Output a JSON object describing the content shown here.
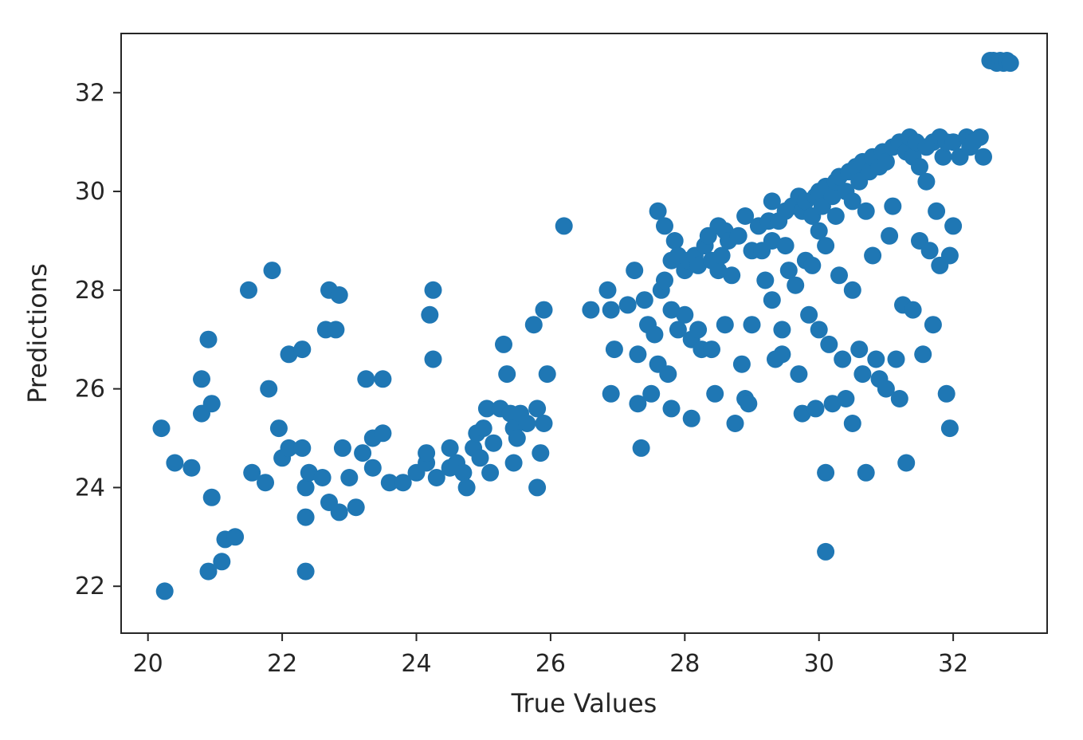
{
  "chart_data": {
    "type": "scatter",
    "title": "",
    "xlabel": "True Values",
    "ylabel": "Predictions",
    "xlim": [
      19.6,
      33.4
    ],
    "ylim": [
      21.05,
      33.2
    ],
    "xticks": [
      20,
      22,
      24,
      26,
      28,
      30,
      32
    ],
    "yticks": [
      22,
      24,
      26,
      28,
      30,
      32
    ],
    "grid": false,
    "legend": "none",
    "marker_color": "#1f77b4",
    "series": [
      {
        "points": [
          [
            20.2,
            25.2
          ],
          [
            20.25,
            21.9
          ],
          [
            20.4,
            24.5
          ],
          [
            20.65,
            24.4
          ],
          [
            20.8,
            26.2
          ],
          [
            20.8,
            25.5
          ],
          [
            20.9,
            27.0
          ],
          [
            20.95,
            25.7
          ],
          [
            20.95,
            23.8
          ],
          [
            20.9,
            22.3
          ],
          [
            21.1,
            22.5
          ],
          [
            21.15,
            22.95
          ],
          [
            21.3,
            23.0
          ],
          [
            21.5,
            28.0
          ],
          [
            21.55,
            24.3
          ],
          [
            21.85,
            28.4
          ],
          [
            21.8,
            26.0
          ],
          [
            21.75,
            24.1
          ],
          [
            21.95,
            25.2
          ],
          [
            22.0,
            24.6
          ],
          [
            22.1,
            24.8
          ],
          [
            22.1,
            26.7
          ],
          [
            22.3,
            26.8
          ],
          [
            22.3,
            24.8
          ],
          [
            22.35,
            24.0
          ],
          [
            22.35,
            23.4
          ],
          [
            22.35,
            22.3
          ],
          [
            22.4,
            24.3
          ],
          [
            22.6,
            24.2
          ],
          [
            22.65,
            27.2
          ],
          [
            22.7,
            28.0
          ],
          [
            22.8,
            27.2
          ],
          [
            22.85,
            27.9
          ],
          [
            22.7,
            23.7
          ],
          [
            22.85,
            23.5
          ],
          [
            22.9,
            24.8
          ],
          [
            23.0,
            24.2
          ],
          [
            23.1,
            23.6
          ],
          [
            23.2,
            24.7
          ],
          [
            23.25,
            26.2
          ],
          [
            23.35,
            24.4
          ],
          [
            23.35,
            25.0
          ],
          [
            23.5,
            26.2
          ],
          [
            23.5,
            25.1
          ],
          [
            23.6,
            24.1
          ],
          [
            23.8,
            24.1
          ],
          [
            24.0,
            24.3
          ],
          [
            24.15,
            24.5
          ],
          [
            24.15,
            24.7
          ],
          [
            24.2,
            27.5
          ],
          [
            24.25,
            28.0
          ],
          [
            24.25,
            26.6
          ],
          [
            24.3,
            24.2
          ],
          [
            24.5,
            24.8
          ],
          [
            24.5,
            24.4
          ],
          [
            24.6,
            24.5
          ],
          [
            24.7,
            24.3
          ],
          [
            24.75,
            24.0
          ],
          [
            24.85,
            24.8
          ],
          [
            24.9,
            25.1
          ],
          [
            24.95,
            24.6
          ],
          [
            25.0,
            25.2
          ],
          [
            25.05,
            25.6
          ],
          [
            25.1,
            24.3
          ],
          [
            25.15,
            24.9
          ],
          [
            25.25,
            25.6
          ],
          [
            25.3,
            26.9
          ],
          [
            25.35,
            26.3
          ],
          [
            25.4,
            25.5
          ],
          [
            25.45,
            25.2
          ],
          [
            25.45,
            24.5
          ],
          [
            25.5,
            25.0
          ],
          [
            25.55,
            25.5
          ],
          [
            25.65,
            25.3
          ],
          [
            25.75,
            27.3
          ],
          [
            25.8,
            24.0
          ],
          [
            25.8,
            25.6
          ],
          [
            25.85,
            24.7
          ],
          [
            25.9,
            27.6
          ],
          [
            25.9,
            25.3
          ],
          [
            25.95,
            26.3
          ],
          [
            26.2,
            29.3
          ],
          [
            26.6,
            27.6
          ],
          [
            26.85,
            28.0
          ],
          [
            26.9,
            27.6
          ],
          [
            26.95,
            26.8
          ],
          [
            26.9,
            25.9
          ],
          [
            27.15,
            27.7
          ],
          [
            27.25,
            28.4
          ],
          [
            27.3,
            26.7
          ],
          [
            27.3,
            25.7
          ],
          [
            27.35,
            24.8
          ],
          [
            27.4,
            27.8
          ],
          [
            27.45,
            27.3
          ],
          [
            27.5,
            25.9
          ],
          [
            27.55,
            27.1
          ],
          [
            27.6,
            29.6
          ],
          [
            27.6,
            26.5
          ],
          [
            27.65,
            28.0
          ],
          [
            27.7,
            29.3
          ],
          [
            27.7,
            28.2
          ],
          [
            27.75,
            26.3
          ],
          [
            27.8,
            28.6
          ],
          [
            27.8,
            27.6
          ],
          [
            27.8,
            25.6
          ],
          [
            27.85,
            29.0
          ],
          [
            27.9,
            28.7
          ],
          [
            27.9,
            27.2
          ],
          [
            28.0,
            28.4
          ],
          [
            28.0,
            27.5
          ],
          [
            28.05,
            28.6
          ],
          [
            28.1,
            27.0
          ],
          [
            28.1,
            25.4
          ],
          [
            28.15,
            28.7
          ],
          [
            28.2,
            28.5
          ],
          [
            28.2,
            27.2
          ],
          [
            28.25,
            26.8
          ],
          [
            28.3,
            28.9
          ],
          [
            28.35,
            29.1
          ],
          [
            28.4,
            28.6
          ],
          [
            28.4,
            26.8
          ],
          [
            28.45,
            25.9
          ],
          [
            28.5,
            29.3
          ],
          [
            28.5,
            28.4
          ],
          [
            28.55,
            28.7
          ],
          [
            28.6,
            29.2
          ],
          [
            28.6,
            27.3
          ],
          [
            28.65,
            29.0
          ],
          [
            28.7,
            28.3
          ],
          [
            28.75,
            25.3
          ],
          [
            28.8,
            29.1
          ],
          [
            28.85,
            26.5
          ],
          [
            28.9,
            29.5
          ],
          [
            28.9,
            25.8
          ],
          [
            28.95,
            25.7
          ],
          [
            29.0,
            28.8
          ],
          [
            29.0,
            27.3
          ],
          [
            29.1,
            29.3
          ],
          [
            29.15,
            28.8
          ],
          [
            29.2,
            28.2
          ],
          [
            29.25,
            29.4
          ],
          [
            29.3,
            29.8
          ],
          [
            29.3,
            29.0
          ],
          [
            29.3,
            27.8
          ],
          [
            29.35,
            26.6
          ],
          [
            29.4,
            29.4
          ],
          [
            29.45,
            27.2
          ],
          [
            29.45,
            26.7
          ],
          [
            29.5,
            29.6
          ],
          [
            29.5,
            28.9
          ],
          [
            29.55,
            28.4
          ],
          [
            29.6,
            29.7
          ],
          [
            29.65,
            28.1
          ],
          [
            29.7,
            29.9
          ],
          [
            29.7,
            26.3
          ],
          [
            29.75,
            29.6
          ],
          [
            29.75,
            25.5
          ],
          [
            29.8,
            29.8
          ],
          [
            29.8,
            28.6
          ],
          [
            29.85,
            27.5
          ],
          [
            29.9,
            29.5
          ],
          [
            29.9,
            28.5
          ],
          [
            29.95,
            29.9
          ],
          [
            29.95,
            25.6
          ],
          [
            30.0,
            30.0
          ],
          [
            30.0,
            29.2
          ],
          [
            30.0,
            27.2
          ],
          [
            30.05,
            29.7
          ],
          [
            30.1,
            30.1
          ],
          [
            30.1,
            28.9
          ],
          [
            30.1,
            24.3
          ],
          [
            30.1,
            22.7
          ],
          [
            30.15,
            26.9
          ],
          [
            30.2,
            29.9
          ],
          [
            30.2,
            25.7
          ],
          [
            30.25,
            30.2
          ],
          [
            30.25,
            29.5
          ],
          [
            30.3,
            30.3
          ],
          [
            30.3,
            28.3
          ],
          [
            30.35,
            26.6
          ],
          [
            30.4,
            30.0
          ],
          [
            30.4,
            25.8
          ],
          [
            30.45,
            30.4
          ],
          [
            30.5,
            29.8
          ],
          [
            30.5,
            28.0
          ],
          [
            30.5,
            25.3
          ],
          [
            30.55,
            30.5
          ],
          [
            30.6,
            30.2
          ],
          [
            30.6,
            26.8
          ],
          [
            30.65,
            30.6
          ],
          [
            30.65,
            26.3
          ],
          [
            30.7,
            29.6
          ],
          [
            30.7,
            24.3
          ],
          [
            30.75,
            30.4
          ],
          [
            30.8,
            30.7
          ],
          [
            30.8,
            28.7
          ],
          [
            30.85,
            26.6
          ],
          [
            30.9,
            30.5
          ],
          [
            30.9,
            26.2
          ],
          [
            30.95,
            30.8
          ],
          [
            31.0,
            30.6
          ],
          [
            31.0,
            26.0
          ],
          [
            31.05,
            29.1
          ],
          [
            31.1,
            30.9
          ],
          [
            31.1,
            29.7
          ],
          [
            31.15,
            26.6
          ],
          [
            31.2,
            31.0
          ],
          [
            31.2,
            25.8
          ],
          [
            31.25,
            27.7
          ],
          [
            31.3,
            30.8
          ],
          [
            31.3,
            24.5
          ],
          [
            31.35,
            31.1
          ],
          [
            31.4,
            30.7
          ],
          [
            31.4,
            27.6
          ],
          [
            31.45,
            31.0
          ],
          [
            31.5,
            30.5
          ],
          [
            31.5,
            29.0
          ],
          [
            31.55,
            26.7
          ],
          [
            31.6,
            30.9
          ],
          [
            31.6,
            30.2
          ],
          [
            31.65,
            28.8
          ],
          [
            31.7,
            31.0
          ],
          [
            31.7,
            27.3
          ],
          [
            31.75,
            29.6
          ],
          [
            31.8,
            31.1
          ],
          [
            31.8,
            28.5
          ],
          [
            31.85,
            30.7
          ],
          [
            31.9,
            31.0
          ],
          [
            31.9,
            25.9
          ],
          [
            31.95,
            28.7
          ],
          [
            31.95,
            25.2
          ],
          [
            32.0,
            31.0
          ],
          [
            32.0,
            29.3
          ],
          [
            32.1,
            30.7
          ],
          [
            32.2,
            31.1
          ],
          [
            32.25,
            30.9
          ],
          [
            32.3,
            31.0
          ],
          [
            32.4,
            31.1
          ],
          [
            32.45,
            30.7
          ],
          [
            32.55,
            32.65
          ],
          [
            32.6,
            32.65
          ],
          [
            32.65,
            32.6
          ],
          [
            32.7,
            32.65
          ],
          [
            32.75,
            32.6
          ],
          [
            32.8,
            32.65
          ],
          [
            32.85,
            32.6
          ]
        ]
      }
    ]
  }
}
